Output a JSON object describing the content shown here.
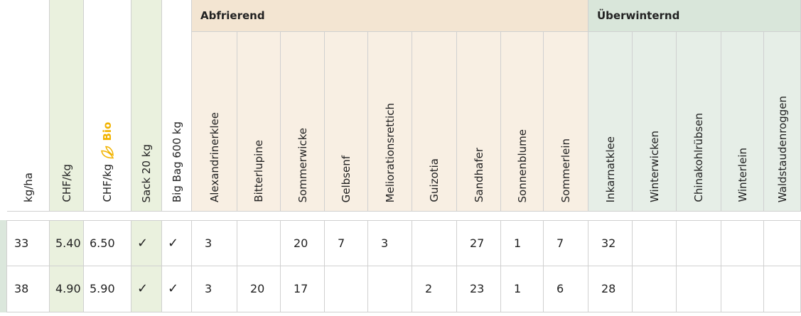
{
  "groups": [
    "Abfrierend",
    "Überwinternd"
  ],
  "columns": [
    "kg/ha",
    "CHF/kg",
    "CHF/kg",
    "Sack 20 kg",
    "Big Bag 600 kg",
    "Alexandrinerklee",
    "Bitterlupine",
    "Sommerwicke",
    "Gelbsenf",
    "Meliorationsrettich",
    "Guizotia",
    "Sandhafer",
    "Sonnenblume",
    "Sommerlein",
    "Inkarnatklee",
    "Winterwicken",
    "Chinakohlrübsen",
    "Winterlein",
    "Waldstaudenroggen"
  ],
  "bio_badge": "Bio",
  "rows": [
    [
      "33",
      "5.40",
      "6.50",
      "✓",
      "✓",
      "3",
      null,
      "20",
      "7",
      "3",
      null,
      "27",
      "1",
      "7",
      "32",
      null,
      null,
      null,
      null
    ],
    [
      "38",
      "4.90",
      "5.90",
      "✓",
      "✓",
      "3",
      "20",
      "17",
      null,
      null,
      "2",
      "23",
      "1",
      "6",
      "28",
      null,
      null,
      null,
      null
    ]
  ]
}
